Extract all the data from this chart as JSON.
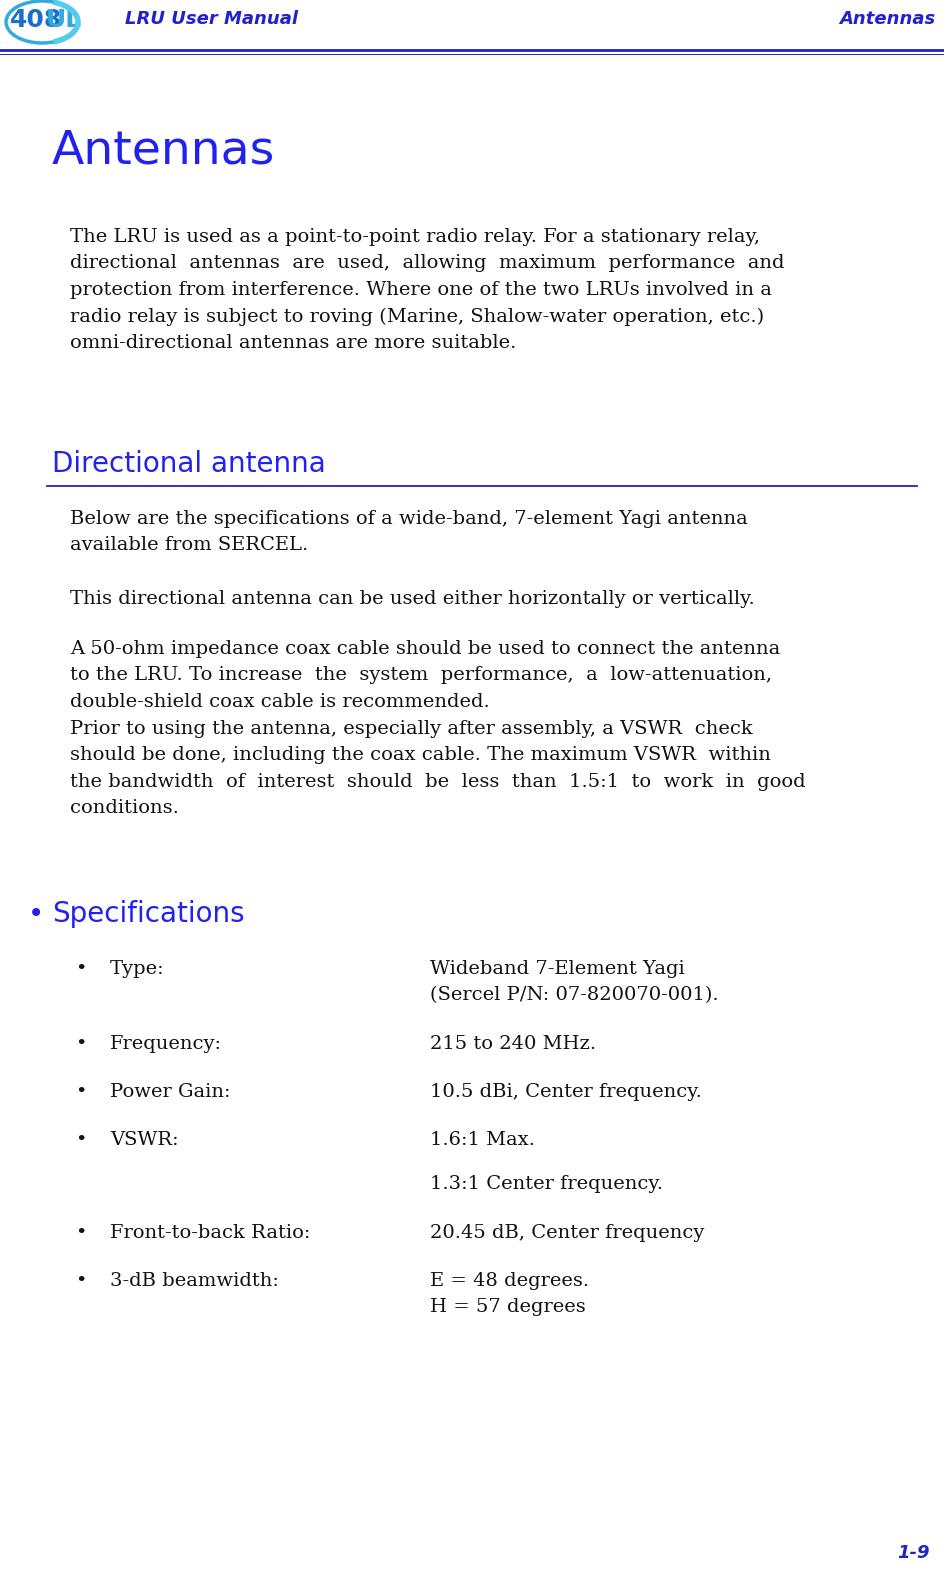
{
  "page_bg": "#ffffff",
  "header_text_color": "#2222cc",
  "header_left": "LRU User Manual",
  "header_right": "Antennas",
  "header_line_color": "#2222cc",
  "page_number": "1-9",
  "page_number_color": "#2222cc",
  "main_title": "Antennas",
  "main_title_color": "#2222ee",
  "section_title": "Directional antenna",
  "section_title_color": "#2222ee",
  "section_line_color": "#2222cc",
  "body_color": "#111111",
  "body_text": "The LRU is used as a point-to-point radio relay. For a stationary relay,\ndirectional  antennas  are  used,  allowing  maximum  performance  and\nprotection from interference. Where one of the two LRUs involved in a\nradio relay is subject to roving (Marine, Shalow-water operation, etc.)\nomni-directional antennas are more suitable.",
  "section_paragraphs": [
    "Below are the specifications of a wide-band, 7-element Yagi antenna\navailable from SERCEL.",
    "This directional antenna can be used either horizontally or vertically.",
    "A 50-ohm impedance coax cable should be used to connect the antenna\nto the LRU. To increase  the  system  performance,  a  low-attenuation,\ndouble-shield coax cable is recommended.",
    "Prior to using the antenna, especially after assembly, a VSWR  check\nshould be done, including the coax cable. The maximum VSWR  within\nthe bandwidth  of  interest  should  be  less  than  1.5:1  to  work  in  good\nconditions."
  ],
  "bullet_title": "Specifications",
  "bullet_title_color": "#2222ee",
  "bullet_items_left": [
    "Type:",
    "Frequency:",
    "Power Gain:",
    "VSWR:",
    "",
    "Front-to-back Ratio:",
    "3-dB beamwidth:"
  ],
  "bullet_items_right": [
    "Wideband 7-Element Yagi\n(Sercel P/N: 07-820070-001).",
    "215 to 240 MHz.",
    "10.5 dBi, Center frequency.",
    "1.6:1 Max.",
    "1.3:1 Center frequency.",
    "20.45 dB, Center frequency",
    "E = 48 degrees.\nH = 57 degrees"
  ],
  "logo_408_color": "#1a6ecc",
  "logo_ul_color": "#33aadd",
  "logo_oval_color": "#33aadd"
}
